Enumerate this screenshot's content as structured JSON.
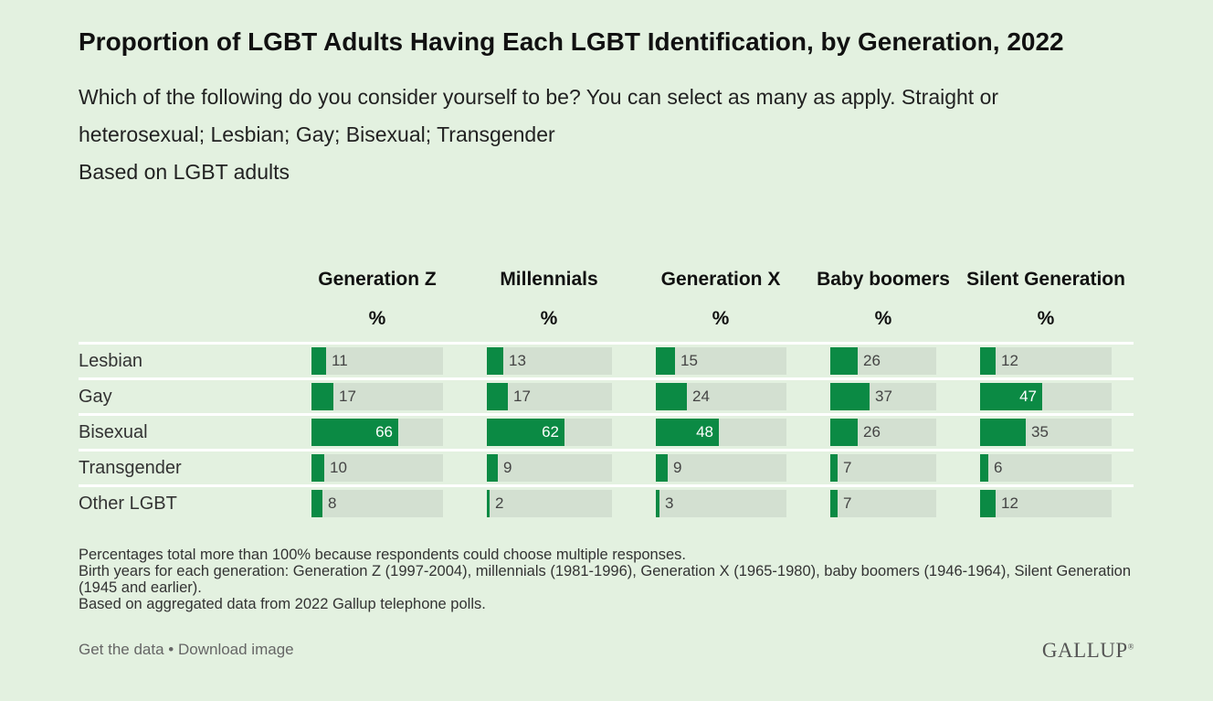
{
  "title": "Proportion of LGBT Adults Having Each LGBT Identification, by Generation, 2022",
  "subtitle": "Which of the following do you consider yourself to be? You can select as many as apply. Straight or heterosexual; Lesbian; Gay; Bisexual; Transgender",
  "based_on": "Based on LGBT adults",
  "notes": [
    "Percentages total more than 100% because respondents could choose multiple responses.",
    "Birth years for each generation: Generation Z (1997-2004), millennials (1981-1996), Generation X (1965-1980), baby boomers (1946-1964), Silent Generation (1945 and earlier).",
    "Based on aggregated data from 2022 Gallup telephone polls."
  ],
  "footer": {
    "get_data": "Get the data",
    "separator": " • ",
    "download": "Download image",
    "logo": "GALLUP",
    "logo_mark": "®"
  },
  "colors": {
    "background": "#e3f1e0",
    "bar": "#0b8a44",
    "track": "#d3e0d1"
  },
  "chart_data": {
    "type": "table",
    "unit_label": "%",
    "columns": [
      "Generation Z",
      "Millennials",
      "Generation X",
      "Baby boomers",
      "Silent Generation"
    ],
    "rows": [
      "Lesbian",
      "Gay",
      "Bisexual",
      "Transgender",
      "Other LGBT"
    ],
    "series": [
      {
        "name": "Generation Z",
        "values": [
          11,
          17,
          66,
          10,
          8
        ]
      },
      {
        "name": "Millennials",
        "values": [
          13,
          17,
          62,
          9,
          2
        ]
      },
      {
        "name": "Generation X",
        "values": [
          15,
          24,
          48,
          9,
          3
        ]
      },
      {
        "name": "Baby boomers",
        "values": [
          26,
          37,
          26,
          7,
          7
        ]
      },
      {
        "name": "Silent Generation",
        "values": [
          12,
          47,
          35,
          6,
          12
        ]
      }
    ],
    "scale_max": 100
  }
}
